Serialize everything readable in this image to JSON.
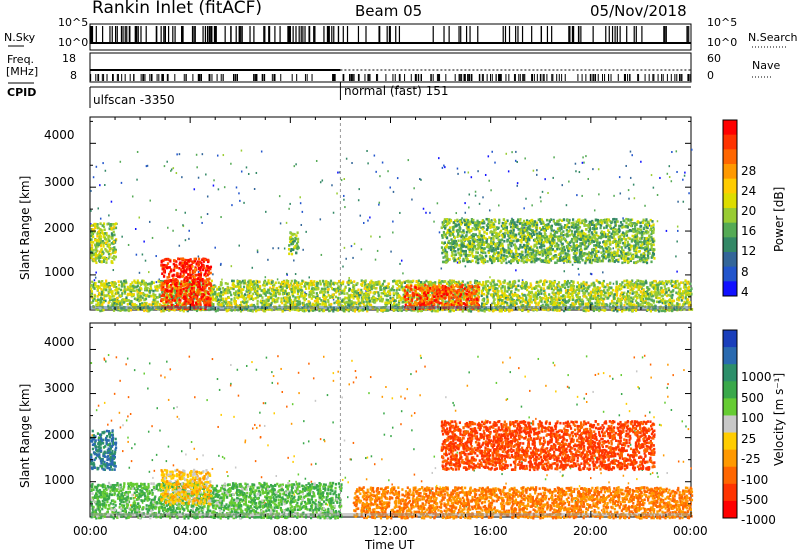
{
  "header": {
    "site": "Rankin Inlet (fitACF)",
    "beam": "Beam 05",
    "date": "05/Nov/2018"
  },
  "status_panel": {
    "nsky_label": "N.Sky",
    "nsearch_label": "N.Search",
    "freq_label": "Freq.",
    "freq_unit": "[MHz]",
    "nave_label": "Nave",
    "cpid_label": "CPID",
    "left_ticks_top": [
      "10^5",
      "10^0"
    ],
    "right_ticks_top": [
      "10^5",
      "10^0"
    ],
    "left_ticks_freq": [
      "18",
      "8"
    ],
    "right_ticks_nave": [
      "60",
      "0"
    ],
    "cpid_segments": [
      {
        "name": "ulfscan -3350",
        "start_hour": 0
      },
      {
        "name": "normal (fast) 151",
        "start_hour": 10
      }
    ]
  },
  "colorbars": {
    "power": {
      "title": "Power [dB]",
      "ticks": [
        "28",
        "24",
        "20",
        "16",
        "12",
        "8",
        "4"
      ],
      "colors": [
        "#ff0000",
        "#ff3300",
        "#ff6600",
        "#ff9900",
        "#ffcc00",
        "#dddd00",
        "#99cc33",
        "#55aa55",
        "#338866",
        "#336699",
        "#2255cc",
        "#1111ff"
      ]
    },
    "velocity": {
      "title": "Velocity [m s⁻¹]",
      "ticks": [
        "1000",
        "500",
        "100",
        "25",
        "-25",
        "-100",
        "-500",
        "-1000"
      ],
      "colors": [
        "#1a3fbb",
        "#2a6ab0",
        "#2d8f6a",
        "#3aa84a",
        "#66cc33",
        "#c8c8c8",
        "#ffcc00",
        "#ff9900",
        "#ff6600",
        "#ff3300",
        "#ff0000"
      ]
    }
  },
  "chart_data": [
    {
      "type": "heatmap",
      "panel": "power",
      "ylabel": "Slant Range [km]",
      "yticks": [
        "4000",
        "3000",
        "2000",
        "1000"
      ],
      "xlim": [
        0,
        24
      ],
      "ylim": [
        200,
        4600
      ],
      "legend": "right",
      "features": [
        {
          "t0": 0.0,
          "t1": 24.0,
          "r0": 200,
          "r1": 900,
          "value": 14
        },
        {
          "t0": 2.8,
          "t1": 4.8,
          "r0": 250,
          "r1": 1400,
          "value": 28
        },
        {
          "t0": 0.0,
          "t1": 1.0,
          "r0": 1300,
          "r1": 2200,
          "value": 14
        },
        {
          "t0": 7.9,
          "t1": 8.3,
          "r0": 1500,
          "r1": 2000,
          "value": 12
        },
        {
          "t0": 14.0,
          "t1": 22.5,
          "r0": 1300,
          "r1": 2300,
          "value": 12
        },
        {
          "t0": 12.5,
          "t1": 15.5,
          "r0": 250,
          "r1": 800,
          "value": 26
        }
      ]
    },
    {
      "type": "heatmap",
      "panel": "velocity",
      "ylabel": "Slant Range [km]",
      "yticks": [
        "4000",
        "3000",
        "2000",
        "1000"
      ],
      "xlim": [
        0,
        24
      ],
      "ylim": [
        200,
        4600
      ],
      "xlabel": "Time UT",
      "xticks": [
        "00:00",
        "04:00",
        "08:00",
        "12:00",
        "16:00",
        "20:00",
        "00:00"
      ],
      "legend": "right",
      "features": [
        {
          "t0": 0.0,
          "t1": 10.0,
          "r0": 200,
          "r1": 1000,
          "value": 100
        },
        {
          "t0": 2.8,
          "t1": 4.8,
          "r0": 500,
          "r1": 1300,
          "value": 0
        },
        {
          "t0": 0.0,
          "t1": 1.0,
          "r0": 1300,
          "r1": 2200,
          "value": 500
        },
        {
          "t0": 14.0,
          "t1": 22.5,
          "r0": 1300,
          "r1": 2400,
          "value": -300
        },
        {
          "t0": 10.5,
          "t1": 24.0,
          "r0": 200,
          "r1": 900,
          "value": -100
        }
      ]
    }
  ]
}
